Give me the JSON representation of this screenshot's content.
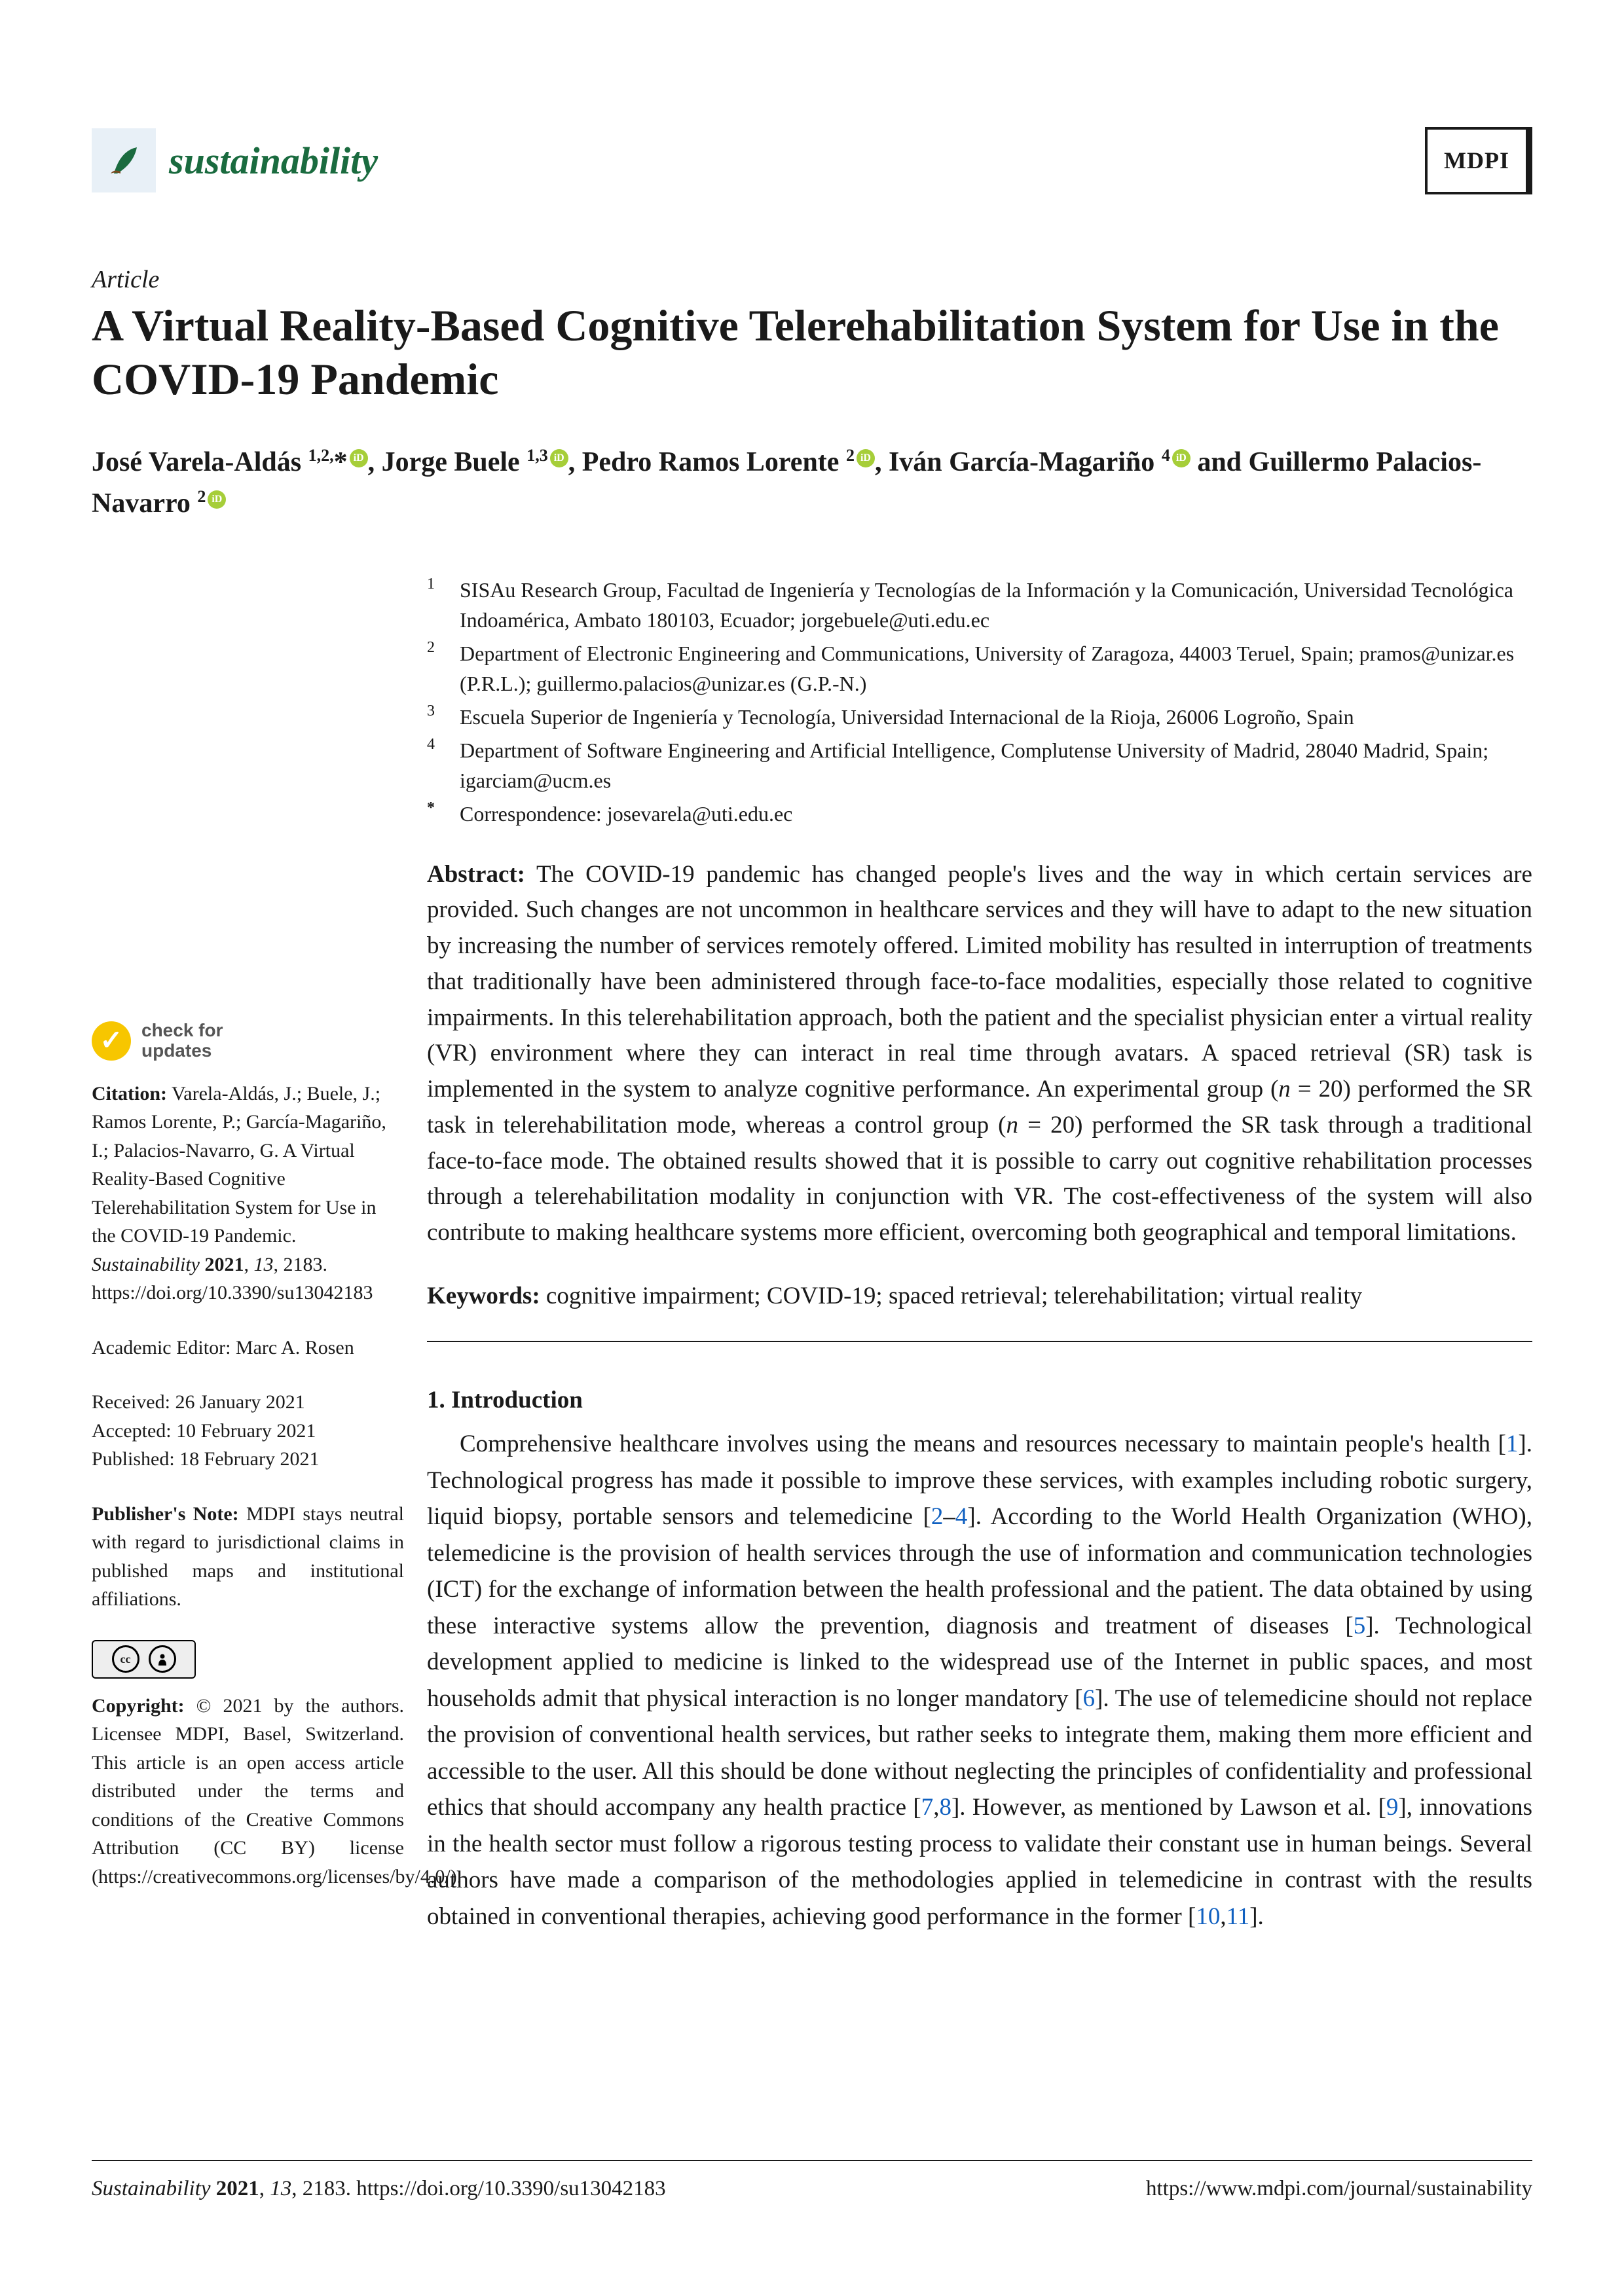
{
  "journal": {
    "name": "sustainability",
    "publisher_abbrev": "MDPI",
    "brand_color": "#1a6b3f",
    "logo_bg": "#e8f0f7"
  },
  "article": {
    "type": "Article",
    "title": "A Virtual Reality-Based Cognitive Telerehabilitation System for Use in the COVID-19 Pandemic",
    "authors_html": "José Varela-Aldás <sup>1,2,</sup>*<span class='orcid'></span>, Jorge Buele <sup>1,3</sup><span class='orcid'></span>, Pedro Ramos Lorente <sup>2</sup><span class='orcid'></span>, Iván García-Magariño <sup>4</sup><span class='orcid'></span> and Guillermo Palacios-Navarro <sup>2</sup><span class='orcid'></span>"
  },
  "affiliations": [
    {
      "num": "1",
      "text": "SISAu Research Group, Facultad de Ingeniería y Tecnologías de la Información y la Comunicación, Universidad Tecnológica Indoamérica, Ambato 180103, Ecuador; jorgebuele@uti.edu.ec"
    },
    {
      "num": "2",
      "text": "Department of Electronic Engineering and Communications, University of Zaragoza, 44003 Teruel, Spain; pramos@unizar.es (P.R.L.); guillermo.palacios@unizar.es (G.P.-N.)"
    },
    {
      "num": "3",
      "text": "Escuela Superior de Ingeniería y Tecnología, Universidad Internacional de la Rioja, 26006 Logroño, Spain"
    },
    {
      "num": "4",
      "text": "Department of Software Engineering and Artificial Intelligence, Complutense University of Madrid, 28040 Madrid, Spain; igarciam@ucm.es"
    }
  ],
  "correspondence": {
    "num": "*",
    "text": "Correspondence: josevarela@uti.edu.ec"
  },
  "abstract": {
    "label": "Abstract:",
    "text": "The COVID-19 pandemic has changed people's lives and the way in which certain services are provided. Such changes are not uncommon in healthcare services and they will have to adapt to the new situation by increasing the number of services remotely offered. Limited mobility has resulted in interruption of treatments that traditionally have been administered through face-to-face modalities, especially those related to cognitive impairments. In this telerehabilitation approach, both the patient and the specialist physician enter a virtual reality (VR) environment where they can interact in real time through avatars. A spaced retrieval (SR) task is implemented in the system to analyze cognitive performance. An experimental group (<em>n</em> = 20) performed the SR task in telerehabilitation mode, whereas a control group (<em>n</em> = 20) performed the SR task through a traditional face-to-face mode. The obtained results showed that it is possible to carry out cognitive rehabilitation processes through a telerehabilitation modality in conjunction with VR. The cost-effectiveness of the system will also contribute to making healthcare systems more efficient, overcoming both geographical and temporal limitations."
  },
  "keywords": {
    "label": "Keywords:",
    "text": "cognitive impairment; COVID-19; spaced retrieval; telerehabilitation; virtual reality"
  },
  "section1": {
    "heading": "1. Introduction",
    "body_html": "Comprehensive healthcare involves using the means and resources necessary to maintain people's health [<span class='ref'>1</span>]. Technological progress has made it possible to improve these services, with examples including robotic surgery, liquid biopsy, portable sensors and telemedicine [<span class='ref'>2</span>–<span class='ref'>4</span>]. According to the World Health Organization (WHO), telemedicine is the provision of health services through the use of information and communication technologies (ICT) for the exchange of information between the health professional and the patient. The data obtained by using these interactive systems allow the prevention, diagnosis and treatment of diseases [<span class='ref'>5</span>]. Technological development applied to medicine is linked to the widespread use of the Internet in public spaces, and most households admit that physical interaction is no longer mandatory [<span class='ref'>6</span>]. The use of telemedicine should not replace the provision of conventional health services, but rather seeks to integrate them, making them more efficient and accessible to the user. All this should be done without neglecting the principles of confidentiality and professional ethics that should accompany any health practice [<span class='ref'>7</span>,<span class='ref'>8</span>]. However, as mentioned by Lawson et al. [<span class='ref'>9</span>], innovations in the health sector must follow a rigorous testing process to validate their constant use in human beings. Several authors have made a comparison of the methodologies applied in telemedicine in contrast with the results obtained in conventional therapies, achieving good performance in the former [<span class='ref'>10</span>,<span class='ref'>11</span>]."
  },
  "sidebar": {
    "check_updates": {
      "line1": "check for",
      "line2": "updates"
    },
    "citation_html": "<b>Citation:</b> Varela-Aldás, J.; Buele, J.; Ramos Lorente, P.; García-Magariño, I.; Palacios-Navarro, G. A Virtual Reality-Based Cognitive Telerehabilitation System for Use in the COVID-19 Pandemic. <i>Sustainability</i> <b>2021</b>, <i>13</i>, 2183. https://doi.org/10.3390/su13042183",
    "editor": "Academic Editor: Marc A. Rosen",
    "dates": {
      "received": "Received: 26 January 2021",
      "accepted": "Accepted: 10 February 2021",
      "published": "Published: 18 February 2021"
    },
    "publisher_note_html": "<b>Publisher's Note:</b> MDPI stays neutral with regard to jurisdictional claims in published maps and institutional affiliations.",
    "copyright_html": "<b>Copyright:</b> © 2021 by the authors. Licensee MDPI, Basel, Switzerland. This article is an open access article distributed under the terms and conditions of the Creative Commons Attribution (CC BY) license (https://creativecommons.org/licenses/by/4.0/)."
  },
  "footer": {
    "left_html": "<i>Sustainability</i> <b>2021</b>, <i>13</i>, 2183. https://doi.org/10.3390/su13042183",
    "right": "https://www.mdpi.com/journal/sustainability"
  },
  "colors": {
    "text": "#1a1a1a",
    "link": "#1060c0",
    "orcid": "#a6ce39",
    "check_badge": "#f7c600"
  }
}
